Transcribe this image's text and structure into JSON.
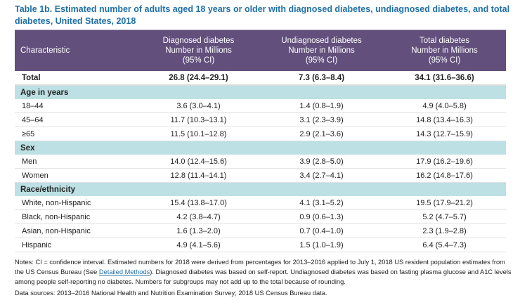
{
  "title": "Table 1b. Estimated number of adults aged 18 years or older with diagnosed diabetes, undiagnosed diabetes, and total diabetes, United States, 2018",
  "header": {
    "characteristic": "Characteristic",
    "diagnosed": [
      "Diagnosed diabetes",
      "Number in Millions",
      "(95% CI)"
    ],
    "undiagnosed": [
      "Undiagnosed diabetes",
      "Number in Millions",
      "(95% CI)"
    ],
    "total": [
      "Total diabetes",
      "Number in Millions",
      "(95% CI)"
    ]
  },
  "total_row": {
    "label": "Total",
    "diagnosed": "26.8 (24.4–29.1)",
    "undiagnosed": "7.3 (6.3–8.4)",
    "total": "34.1 (31.6–36.6)"
  },
  "sections": [
    {
      "label": "Age in years",
      "rows": [
        {
          "label": "18–44",
          "diagnosed": "3.6 (3.0–4.1)",
          "undiagnosed": "1.4 (0.8–1.9)",
          "total": "4.9 (4.0–5.8)"
        },
        {
          "label": "45–64",
          "diagnosed": "11.7 (10.3–13.1)",
          "undiagnosed": "3.1 (2.3–3.9)",
          "total": "14.8 (13.4–16.3)"
        },
        {
          "label": "≥65",
          "diagnosed": "11.5 (10.1–12.8)",
          "undiagnosed": "2.9 (2.1–3.6)",
          "total": "14.3 (12.7–15.9)"
        }
      ]
    },
    {
      "label": "Sex",
      "rows": [
        {
          "label": "Men",
          "diagnosed": "14.0 (12.4–15.6)",
          "undiagnosed": "3.9 (2.8–5.0)",
          "total": "17.9 (16.2–19.6)"
        },
        {
          "label": "Women",
          "diagnosed": "12.8 (11.4–14.1)",
          "undiagnosed": "3.4 (2.7–4.1)",
          "total": "16.2 (14.8–17.6)"
        }
      ]
    },
    {
      "label": "Race/ethnicity",
      "rows": [
        {
          "label": "White, non-Hispanic",
          "diagnosed": "15.4 (13.8–17.0)",
          "undiagnosed": "4.1 (3.1–5.2)",
          "total": "19.5 (17.9–21.2)"
        },
        {
          "label": "Black, non-Hispanic",
          "diagnosed": "4.2 (3.8–4.7)",
          "undiagnosed": "0.9 (0.6–1.3)",
          "total": "5.2 (4.7–5.7)"
        },
        {
          "label": "Asian, non-Hispanic",
          "diagnosed": "1.6 (1.3–2.0)",
          "undiagnosed": "0.7 (0.4–1.0)",
          "total": "2.3 (1.9–2.8)"
        },
        {
          "label": "Hispanic",
          "diagnosed": "4.9 (4.1–5.6)",
          "undiagnosed": "1.5 (1.0–1.9)",
          "total": "6.4 (5.4–7.3)"
        }
      ]
    }
  ],
  "notes": {
    "before_link": "Notes: CI = confidence interval. Estimated numbers for 2018 were derived from percentages for 2013–2016 applied to July 1, 2018 US resident population estimates from the US Census Bureau (See ",
    "link": "Detailed Methods",
    "after_link": "). Diagnosed diabetes was based on self-report. Undiagnosed diabetes was based on fasting plasma glucose and A1C levels among people self-reporting no diabetes. Numbers for subgroups may not add up to the total because of rounding.",
    "sources": "Data sources: 2013–2016 National Health and Nutrition Examination Survey; 2018 US Census Bureau data."
  },
  "colors": {
    "header_bg": "#624f7c",
    "section_bg": "#bde0e4",
    "title": "#1f6fa6"
  }
}
